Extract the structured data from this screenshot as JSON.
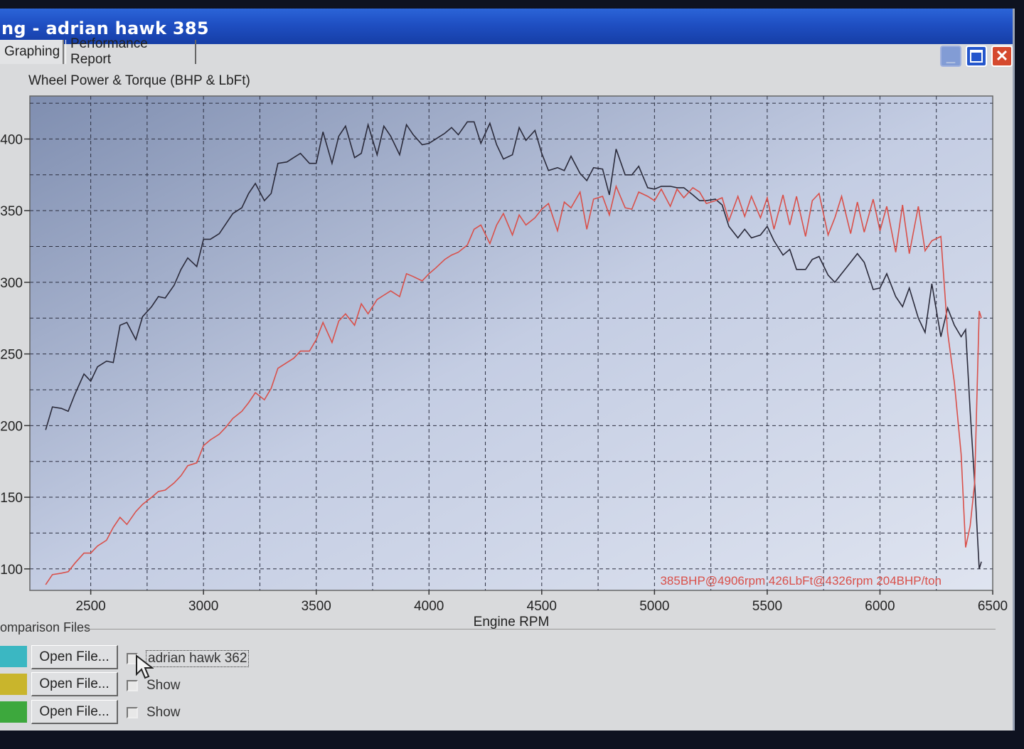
{
  "window": {
    "title": "ng - adrian hawk 385",
    "colors": {
      "titlebar": "#1f4fc2",
      "close": "#d5492e"
    }
  },
  "tabs": [
    {
      "label": "Graphing",
      "active": true
    },
    {
      "label": "Performance Report",
      "active": false
    }
  ],
  "chart_data": {
    "type": "line",
    "title": "Wheel Power & Torque (BHP & LbFt)",
    "xlabel": "Engine RPM",
    "ylabel": "",
    "xlim": [
      2230,
      6500
    ],
    "ylim": [
      85,
      430
    ],
    "xticks": [
      2500,
      3000,
      3500,
      4000,
      4500,
      5000,
      5500,
      6000,
      6500
    ],
    "yticks": [
      100,
      150,
      200,
      250,
      300,
      350,
      400
    ],
    "grid": true,
    "annotation": "385BHP@4906rpm 426LbFt@4326rpm 204BHP/ton",
    "series": [
      {
        "color": "#2a2a3a",
        "x": [
          2300,
          2330,
          2370,
          2400,
          2430,
          2470,
          2500,
          2530,
          2570,
          2600,
          2630,
          2660,
          2700,
          2730,
          2770,
          2800,
          2830,
          2870,
          2900,
          2930,
          2970,
          3000,
          3030,
          3070,
          3100,
          3130,
          3170,
          3200,
          3230,
          3270,
          3300,
          3330,
          3370,
          3400,
          3430,
          3470,
          3500,
          3530,
          3570,
          3600,
          3630,
          3670,
          3700,
          3730,
          3770,
          3800,
          3830,
          3870,
          3900,
          3930,
          3970,
          4000,
          4030,
          4070,
          4100,
          4130,
          4170,
          4200,
          4230,
          4270,
          4300,
          4330,
          4370,
          4400,
          4430,
          4470,
          4500,
          4530,
          4570,
          4600,
          4630,
          4670,
          4700,
          4730,
          4770,
          4800,
          4830,
          4870,
          4900,
          4930,
          4970,
          5000,
          5030,
          5070,
          5100,
          5130,
          5170,
          5200,
          5230,
          5270,
          5300,
          5330,
          5370,
          5400,
          5430,
          5470,
          5500,
          5530,
          5570,
          5600,
          5630,
          5670,
          5700,
          5730,
          5770,
          5800,
          5830,
          5870,
          5900,
          5930,
          5970,
          6000,
          6030,
          6070,
          6100,
          6130,
          6170,
          6200,
          6230,
          6270,
          6300,
          6330,
          6360,
          6380,
          6400,
          6420,
          6440,
          6450
        ],
        "y": [
          197,
          213,
          212,
          210,
          222,
          236,
          231,
          241,
          245,
          244,
          270,
          272,
          260,
          276,
          283,
          290,
          289,
          298,
          309,
          317,
          311,
          330,
          330,
          334,
          341,
          348,
          352,
          362,
          369,
          357,
          362,
          383,
          384,
          387,
          390,
          383,
          383,
          405,
          383,
          402,
          409,
          387,
          390,
          410,
          389,
          409,
          402,
          389,
          410,
          403,
          396,
          397,
          400,
          404,
          408,
          403,
          412,
          412,
          397,
          411,
          396,
          386,
          389,
          408,
          399,
          406,
          390,
          378,
          380,
          378,
          388,
          376,
          371,
          380,
          379,
          361,
          393,
          375,
          375,
          381,
          366,
          365,
          367,
          367,
          366,
          366,
          361,
          357,
          357,
          358,
          354,
          339,
          331,
          337,
          331,
          333,
          339,
          329,
          319,
          323,
          309,
          309,
          316,
          318,
          305,
          300,
          306,
          314,
          320,
          314,
          295,
          296,
          306,
          290,
          283,
          296,
          275,
          265,
          299,
          262,
          282,
          270,
          262,
          267,
          210,
          160,
          100,
          105
        ]
      },
      {
        "color": "#d9504a",
        "x": [
          2300,
          2330,
          2370,
          2400,
          2430,
          2470,
          2500,
          2530,
          2570,
          2600,
          2630,
          2660,
          2700,
          2730,
          2770,
          2800,
          2830,
          2870,
          2900,
          2930,
          2970,
          3000,
          3030,
          3070,
          3100,
          3130,
          3170,
          3200,
          3230,
          3270,
          3300,
          3330,
          3370,
          3400,
          3430,
          3470,
          3500,
          3530,
          3570,
          3600,
          3630,
          3670,
          3700,
          3730,
          3770,
          3800,
          3830,
          3870,
          3900,
          3930,
          3970,
          4000,
          4030,
          4070,
          4100,
          4130,
          4170,
          4200,
          4230,
          4270,
          4300,
          4330,
          4370,
          4400,
          4430,
          4470,
          4500,
          4530,
          4570,
          4600,
          4630,
          4670,
          4700,
          4730,
          4770,
          4800,
          4830,
          4870,
          4900,
          4930,
          4970,
          5000,
          5030,
          5070,
          5100,
          5130,
          5170,
          5200,
          5230,
          5270,
          5300,
          5330,
          5370,
          5400,
          5430,
          5470,
          5500,
          5530,
          5570,
          5600,
          5630,
          5670,
          5700,
          5730,
          5770,
          5800,
          5830,
          5870,
          5900,
          5930,
          5970,
          6000,
          6030,
          6070,
          6100,
          6130,
          6170,
          6200,
          6230,
          6270,
          6300,
          6330,
          6360,
          6380,
          6400,
          6420,
          6440,
          6450
        ],
        "y": [
          89,
          96,
          97,
          98,
          104,
          111,
          111,
          116,
          120,
          129,
          136,
          131,
          140,
          145,
          150,
          154,
          155,
          160,
          165,
          172,
          174,
          186,
          190,
          194,
          199,
          205,
          210,
          216,
          223,
          218,
          226,
          240,
          244,
          247,
          252,
          252,
          260,
          272,
          258,
          273,
          278,
          270,
          285,
          278,
          288,
          291,
          294,
          290,
          306,
          304,
          301,
          306,
          310,
          316,
          319,
          321,
          326,
          337,
          340,
          327,
          340,
          348,
          333,
          347,
          340,
          345,
          351,
          355,
          336,
          356,
          352,
          363,
          337,
          358,
          360,
          347,
          367,
          352,
          351,
          363,
          360,
          357,
          365,
          353,
          365,
          359,
          366,
          363,
          355,
          357,
          359,
          343,
          360,
          346,
          360,
          345,
          359,
          337,
          361,
          340,
          360,
          332,
          357,
          362,
          333,
          345,
          360,
          334,
          356,
          335,
          358,
          336,
          353,
          321,
          354,
          320,
          353,
          322,
          329,
          332,
          265,
          230,
          180,
          115,
          130,
          160,
          280,
          275
        ]
      }
    ]
  },
  "comparison": {
    "label": "omparison Files",
    "rows": [
      {
        "swatch": "#3bb7c2",
        "button": "Open File...",
        "checkbox_label": "adrian hawk 362"
      },
      {
        "swatch": "#c9b52c",
        "button": "Open File...",
        "checkbox_label": "Show"
      },
      {
        "swatch": "#3da83d",
        "button": "Open File...",
        "checkbox_label": "Show"
      }
    ]
  }
}
